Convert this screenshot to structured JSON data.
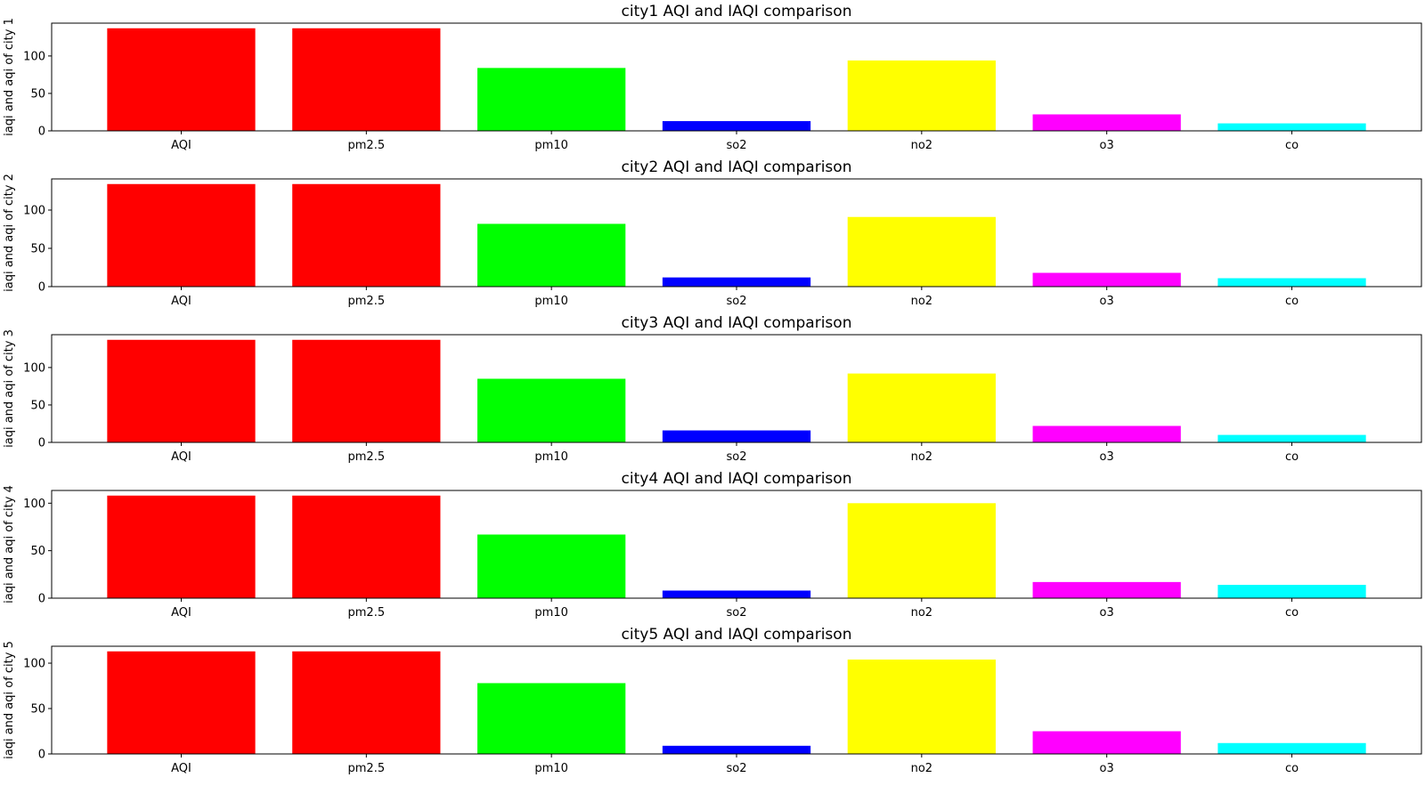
{
  "chart_data": [
    {
      "type": "bar",
      "title": "city1 AQI and IAQI comparison",
      "ylabel": "iaqi and aqi of city 1",
      "categories": [
        "AQI",
        "pm2.5",
        "pm10",
        "so2",
        "no2",
        "o3",
        "co"
      ],
      "values": [
        137,
        137,
        84,
        13,
        94,
        22,
        10
      ],
      "colors": [
        "#ff0000",
        "#ff0000",
        "#00ff00",
        "#0000ff",
        "#ffff00",
        "#ff00ff",
        "#00ffff"
      ],
      "yticks": [
        0,
        50,
        100
      ],
      "ylim": [
        0,
        143.85
      ]
    },
    {
      "type": "bar",
      "title": "city2 AQI and IAQI comparison",
      "ylabel": "iaqi and aqi of city 2",
      "categories": [
        "AQI",
        "pm2.5",
        "pm10",
        "so2",
        "no2",
        "o3",
        "co"
      ],
      "values": [
        134,
        134,
        82,
        12,
        91,
        18,
        11
      ],
      "colors": [
        "#ff0000",
        "#ff0000",
        "#00ff00",
        "#0000ff",
        "#ffff00",
        "#ff00ff",
        "#00ffff"
      ],
      "yticks": [
        0,
        50,
        100
      ],
      "ylim": [
        0,
        140.7
      ]
    },
    {
      "type": "bar",
      "title": "city3 AQI and IAQI comparison",
      "ylabel": "iaqi and aqi of city 3",
      "categories": [
        "AQI",
        "pm2.5",
        "pm10",
        "so2",
        "no2",
        "o3",
        "co"
      ],
      "values": [
        137,
        137,
        85,
        16,
        92,
        22,
        10
      ],
      "colors": [
        "#ff0000",
        "#ff0000",
        "#00ff00",
        "#0000ff",
        "#ffff00",
        "#ff00ff",
        "#00ffff"
      ],
      "yticks": [
        0,
        50,
        100
      ],
      "ylim": [
        0,
        143.85
      ]
    },
    {
      "type": "bar",
      "title": "city4 AQI and IAQI comparison",
      "ylabel": "iaqi and aqi of city 4",
      "categories": [
        "AQI",
        "pm2.5",
        "pm10",
        "so2",
        "no2",
        "o3",
        "co"
      ],
      "values": [
        108,
        108,
        67,
        8,
        100,
        17,
        14
      ],
      "colors": [
        "#ff0000",
        "#ff0000",
        "#00ff00",
        "#0000ff",
        "#ffff00",
        "#ff00ff",
        "#00ffff"
      ],
      "yticks": [
        0,
        50,
        100
      ],
      "ylim": [
        0,
        113.4
      ]
    },
    {
      "type": "bar",
      "title": "city5 AQI and IAQI comparison",
      "ylabel": "iaqi and aqi of city 5",
      "categories": [
        "AQI",
        "pm2.5",
        "pm10",
        "so2",
        "no2",
        "o3",
        "co"
      ],
      "values": [
        113,
        113,
        78,
        9,
        104,
        25,
        12
      ],
      "colors": [
        "#ff0000",
        "#ff0000",
        "#00ff00",
        "#0000ff",
        "#ffff00",
        "#ff00ff",
        "#00ffff"
      ],
      "yticks": [
        0,
        50,
        100
      ],
      "ylim": [
        0,
        118.65
      ]
    }
  ]
}
